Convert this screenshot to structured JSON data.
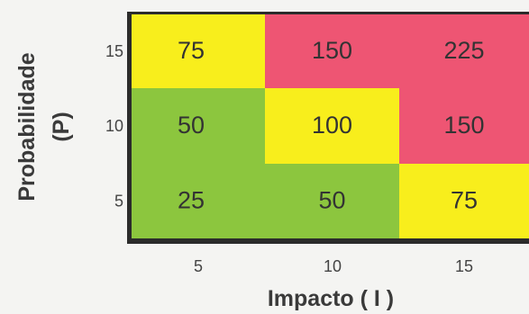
{
  "chart_data": {
    "type": "heatmap",
    "title": "",
    "xlabel": "Impacto ( I )",
    "ylabel_line1": "Probabilidade",
    "ylabel_line2": "(P)",
    "x_categories": [
      "5",
      "10",
      "15"
    ],
    "y_categories": [
      "15",
      "10",
      "5"
    ],
    "values": [
      [
        75,
        150,
        225
      ],
      [
        50,
        100,
        150
      ],
      [
        25,
        50,
        75
      ]
    ],
    "cell_colors": [
      [
        "yellow",
        "red",
        "red"
      ],
      [
        "green",
        "yellow",
        "red"
      ],
      [
        "green",
        "green",
        "yellow"
      ]
    ]
  },
  "colors": {
    "yellow": "#f8ee1c",
    "red": "#ee5573",
    "green": "#8cc63e",
    "frame": "#2b2b2b"
  }
}
